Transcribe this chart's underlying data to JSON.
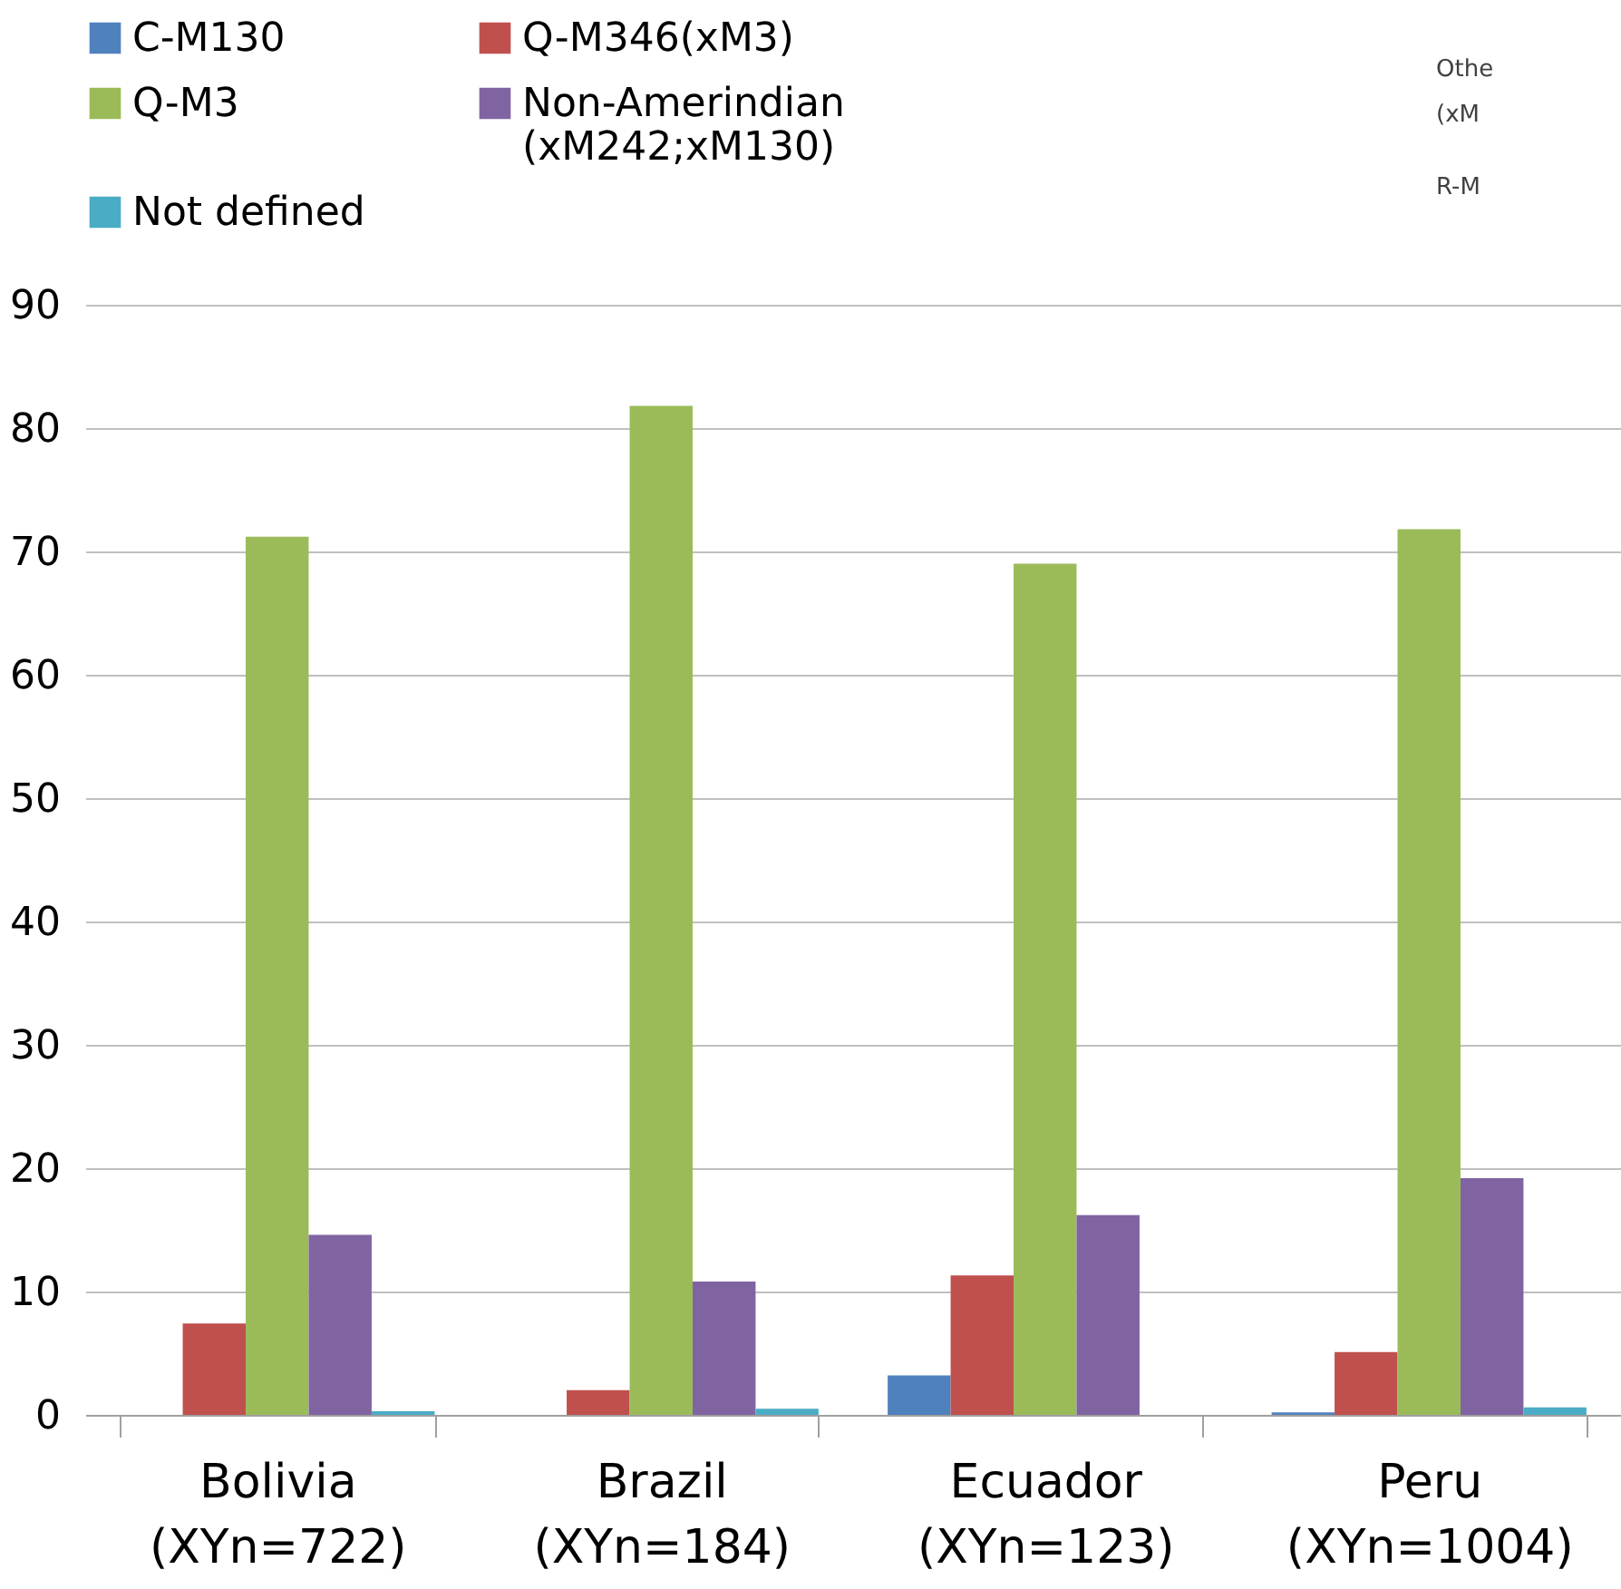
{
  "chart_data": {
    "type": "bar",
    "categories": [
      "Bolivia\n(XYn=722)",
      "Brazil\n(XYn=184)",
      "Ecuador\n(XYn=123)",
      "Peru\n(XYn=1004)"
    ],
    "series": [
      {
        "name": "C-M130",
        "color": "#4f81bd",
        "values": [
          0,
          0,
          3.2,
          0.2
        ]
      },
      {
        "name": "Q-M346(xM3)",
        "color": "#c0504d",
        "values": [
          7.4,
          2.0,
          11.3,
          5.1
        ]
      },
      {
        "name": "Q-M3",
        "color": "#9bbb59",
        "values": [
          71.2,
          81.8,
          69.0,
          71.8
        ]
      },
      {
        "name": "Non-Amerindian\n(xM242;xM130)",
        "color": "#8064a2",
        "values": [
          14.6,
          10.8,
          16.2,
          19.2
        ]
      },
      {
        "name": "Not defined",
        "color": "#4bacc6",
        "values": [
          0.3,
          0.5,
          0,
          0.6
        ]
      }
    ],
    "ylim": [
      0,
      90
    ],
    "yticks": [
      0,
      10,
      20,
      30,
      40,
      50,
      60,
      70,
      80,
      90
    ],
    "grid": "y",
    "legend": "top left",
    "annotations": [
      "Othe",
      "(xM",
      "R-M"
    ]
  }
}
